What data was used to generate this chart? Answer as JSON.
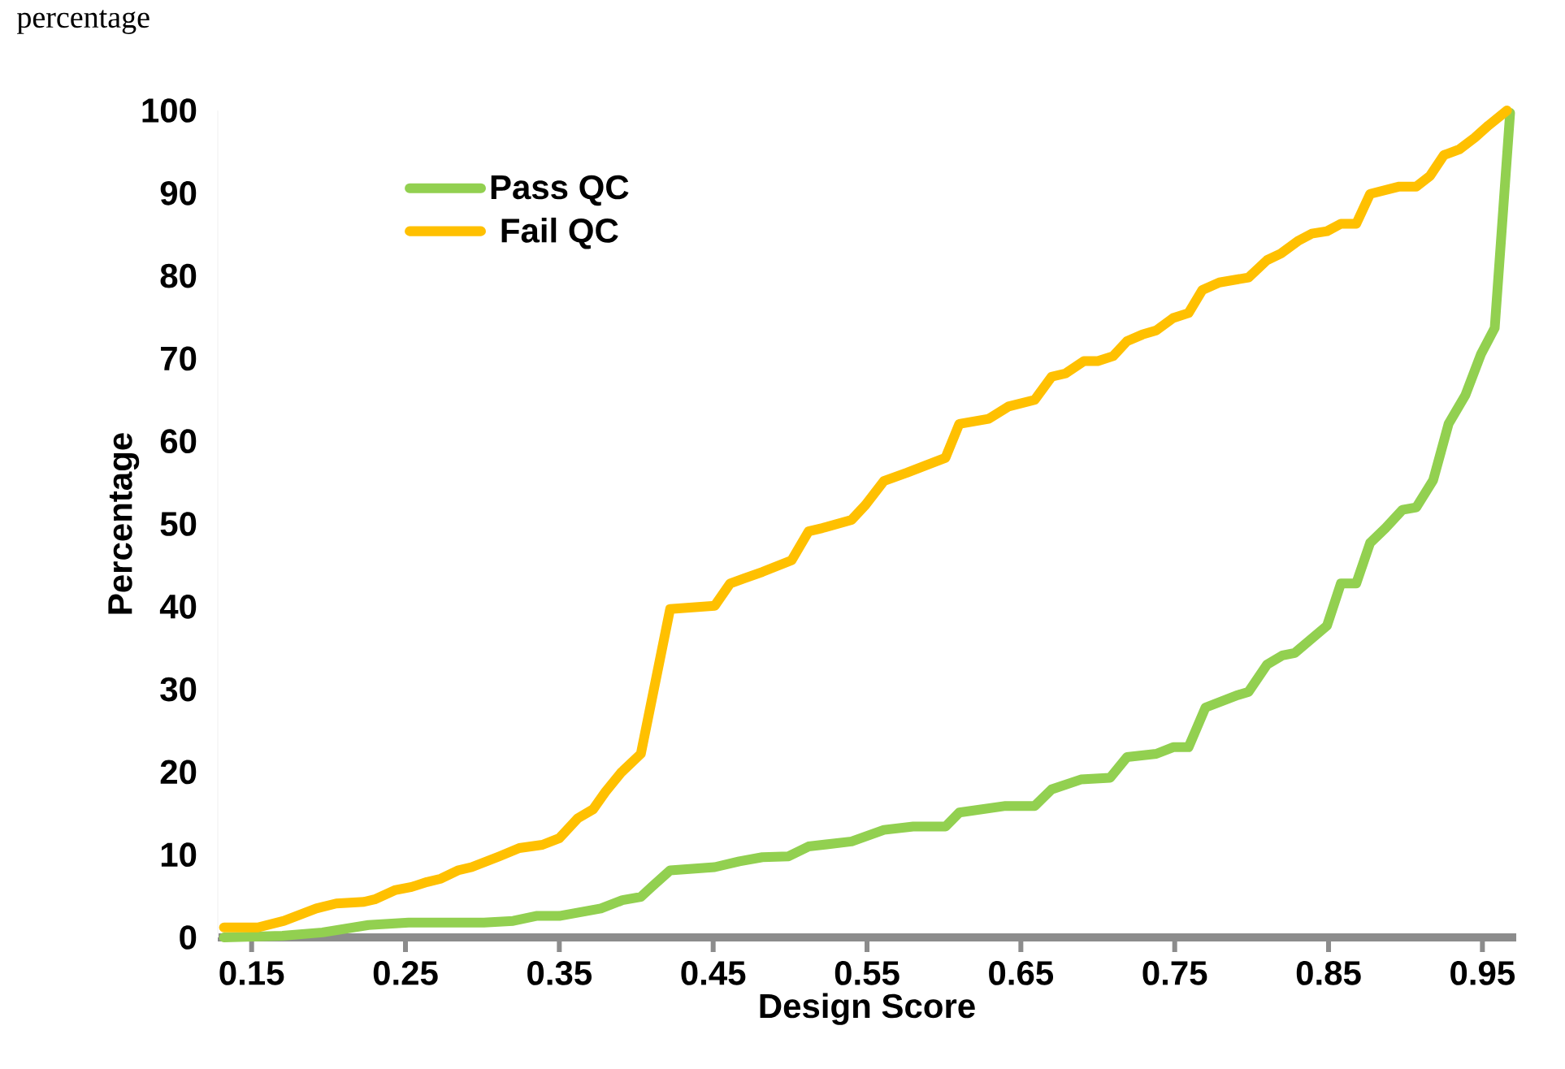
{
  "chart_data": {
    "type": "line",
    "xlabel": "Design Score",
    "ylabel": "Percentage",
    "annotations": [
      "percentage"
    ],
    "xlim": [
      0.128,
      0.972
    ],
    "xticks": [
      0.15,
      0.25,
      0.35,
      0.45,
      0.55,
      0.65,
      0.75,
      0.85,
      0.95
    ],
    "ylim": [
      0,
      100
    ],
    "yticks": [
      0,
      10,
      20,
      30,
      40,
      50,
      60,
      70,
      80,
      90,
      100
    ],
    "legend": "top left",
    "grid": false,
    "marker": "none",
    "line_style": "solid",
    "series": [
      {
        "name": "Pass QC",
        "color": "#92d050",
        "x": [
          0.132,
          0.17,
          0.196,
          0.226,
          0.252,
          0.301,
          0.32,
          0.335,
          0.35,
          0.377,
          0.391,
          0.403,
          0.41,
          0.422,
          0.451,
          0.467,
          0.482,
          0.499,
          0.512,
          0.54,
          0.561,
          0.58,
          0.601,
          0.61,
          0.64,
          0.659,
          0.67,
          0.689,
          0.708,
          0.719,
          0.738,
          0.749,
          0.759,
          0.77,
          0.791,
          0.798,
          0.81,
          0.82,
          0.828,
          0.849,
          0.858,
          0.868,
          0.877,
          0.887,
          0.898,
          0.907,
          0.918,
          0.928,
          0.939,
          0.949,
          0.958,
          0.968
        ],
        "values": [
          0,
          0.2,
          0.6,
          1.5,
          1.8,
          1.8,
          2,
          2.6,
          2.6,
          3.5,
          4.5,
          4.9,
          6.1,
          8.1,
          8.5,
          9.2,
          9.7,
          9.8,
          11,
          11.6,
          13,
          13.4,
          13.4,
          15.1,
          15.9,
          15.9,
          17.9,
          19.1,
          19.3,
          21.8,
          22.2,
          23,
          23,
          27.8,
          29.3,
          29.7,
          33,
          34.1,
          34.4,
          37.7,
          42.8,
          42.8,
          47.7,
          49.5,
          51.7,
          52,
          55.3,
          62.1,
          65.6,
          70.5,
          73.7,
          99.7
        ]
      },
      {
        "name": "Fail QC",
        "color": "#ffc000",
        "x": [
          0.132,
          0.154,
          0.171,
          0.192,
          0.205,
          0.223,
          0.23,
          0.243,
          0.254,
          0.264,
          0.273,
          0.284,
          0.293,
          0.311,
          0.324,
          0.339,
          0.35,
          0.362,
          0.372,
          0.38,
          0.39,
          0.403,
          0.422,
          0.451,
          0.461,
          0.47,
          0.482,
          0.501,
          0.512,
          0.521,
          0.54,
          0.549,
          0.561,
          0.576,
          0.59,
          0.601,
          0.61,
          0.629,
          0.642,
          0.659,
          0.67,
          0.679,
          0.691,
          0.7,
          0.71,
          0.719,
          0.729,
          0.738,
          0.749,
          0.759,
          0.768,
          0.779,
          0.798,
          0.81,
          0.819,
          0.83,
          0.839,
          0.849,
          0.858,
          0.868,
          0.877,
          0.896,
          0.907,
          0.916,
          0.925,
          0.935,
          0.945,
          0.954,
          0.966
        ],
        "values": [
          1.2,
          1.2,
          2,
          3.5,
          4.1,
          4.3,
          4.6,
          5.7,
          6.1,
          6.7,
          7.1,
          8.1,
          8.5,
          9.8,
          10.8,
          11.2,
          12,
          14.4,
          15.5,
          17.6,
          19.9,
          22.2,
          39.7,
          40.1,
          42.8,
          43.4,
          44.2,
          45.6,
          49.1,
          49.5,
          50.5,
          52.3,
          55.2,
          56.2,
          57.2,
          58,
          62.1,
          62.7,
          64.2,
          65,
          67.8,
          68.2,
          69.7,
          69.7,
          70.3,
          72.1,
          72.9,
          73.4,
          74.9,
          75.5,
          78.3,
          79.2,
          79.8,
          81.9,
          82.7,
          84.2,
          85.1,
          85.4,
          86.3,
          86.3,
          89.9,
          90.8,
          90.8,
          92.1,
          94.6,
          95.3,
          96.7,
          98.2,
          100
        ]
      }
    ]
  }
}
